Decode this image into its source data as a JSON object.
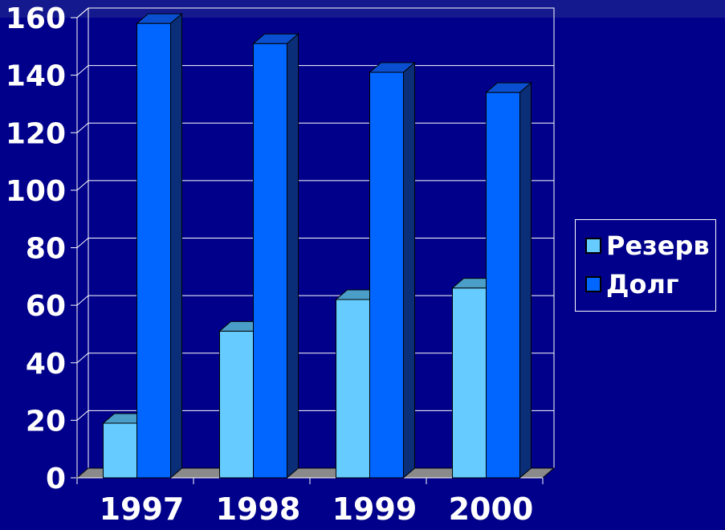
{
  "chart_data": {
    "type": "bar",
    "categories": [
      "1997",
      "1998",
      "1999",
      "2000"
    ],
    "series": [
      {
        "name": "Резерв",
        "values": [
          19,
          51,
          62,
          66
        ]
      },
      {
        "name": "Долг",
        "values": [
          158,
          151,
          141,
          134
        ]
      }
    ],
    "y_ticks": [
      "0",
      "20",
      "40",
      "60",
      "80",
      "100",
      "120",
      "140",
      "160"
    ],
    "ylim": [
      0,
      160
    ],
    "grid": true,
    "legend_position": "right",
    "colors": {
      "background": "#00008a",
      "reserve_front": "#66ccff",
      "reserve_top": "#4a9ec8",
      "reserve_side": "#3a7fae",
      "debt_front": "#0066ff",
      "debt_top": "#0a4fd0",
      "debt_side": "#0a2f78",
      "floor": "#8a8a8a",
      "grid": "#ffffff"
    }
  }
}
